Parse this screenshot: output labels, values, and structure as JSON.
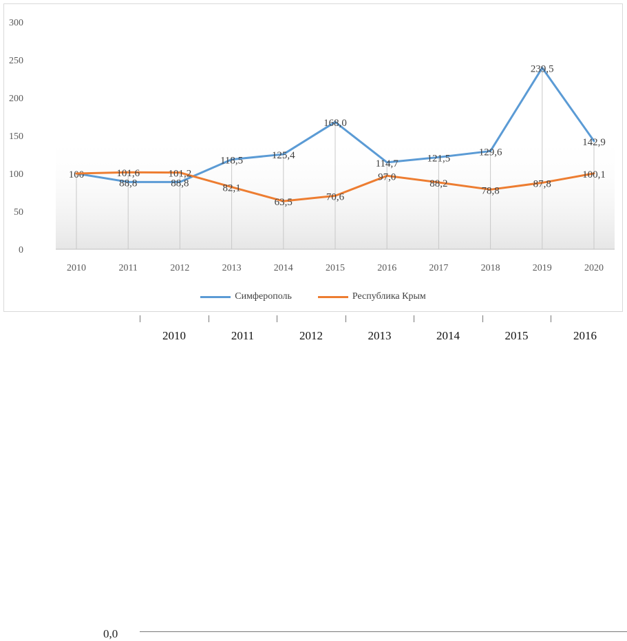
{
  "chart_data": {
    "type": "line",
    "categories": [
      "2010",
      "2011",
      "2012",
      "2013",
      "2014",
      "2015",
      "2016",
      "2017",
      "2018",
      "2019",
      "2020"
    ],
    "series": [
      {
        "name": "Симферополь",
        "color": "#5b9bd5",
        "values": [
          100,
          88.8,
          88.8,
          118.5,
          125.4,
          168.0,
          114.7,
          121.5,
          129.6,
          239.5,
          142.9
        ],
        "labels": [
          "100",
          "88,8",
          "88,8",
          "118,5",
          "125,4",
          "168,0",
          "114,7",
          "121,5",
          "129,6",
          "239,5",
          "142,9"
        ]
      },
      {
        "name": "Республика Крым",
        "color": "#ed7d31",
        "values": [
          100,
          101.6,
          101.2,
          82.1,
          63.5,
          70.6,
          97.0,
          88.2,
          78.8,
          87.8,
          100.1
        ],
        "labels": [
          "",
          "101,6",
          "101,2",
          "82,1",
          "63,5",
          "70,6",
          "97,0",
          "88,2",
          "78,8",
          "87,8",
          "100,1"
        ]
      }
    ],
    "yticks": [
      "0",
      "50",
      "100",
      "150",
      "200",
      "250",
      "300"
    ],
    "ylim": [
      0,
      300
    ],
    "grid": "vertical-drop-lines",
    "legend": "bottom"
  },
  "background_chart_fragment": {
    "ytick": "0,0",
    "years": [
      "2010",
      "2011",
      "2012",
      "2013",
      "2014",
      "2015",
      "2016"
    ]
  }
}
